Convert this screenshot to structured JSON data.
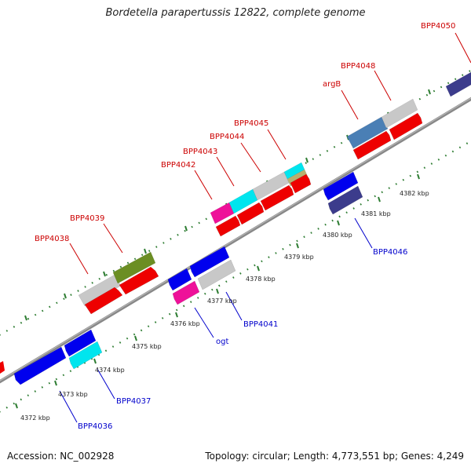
{
  "title": "Bordetella parapertussis 12822, complete genome",
  "footer": {
    "accession": "Accession: NC_002928",
    "summary": "Topology: circular; Length: 4,773,551 bp; Genes: 4,249"
  },
  "colors": {
    "forward_label": "#cc0000",
    "reverse_label": "#0000cc",
    "backbone": "#888888",
    "ticks": "#2e7d32",
    "cds": "#ee0000",
    "gray": "#c8c8c8",
    "olive": "#6b8e23",
    "cyan": "#00e5ee",
    "magenta": "#ee1199",
    "blue": "#0000ee",
    "navy": "#3c3c8c",
    "steelblue": "#4a7fb5",
    "khaki": "#b8b070"
  },
  "kbp_labels": [
    "4372 kbp",
    "4373 kbp",
    "4374 kbp",
    "4375 kbp",
    "4376 kbp",
    "4377 kbp",
    "4378 kbp",
    "4379 kbp",
    "4380 kbp",
    "4381 kbp",
    "4382 kbp"
  ],
  "forward_genes": [
    "BPP4038",
    "BPP4039",
    "BPP4042",
    "BPP4043",
    "BPP4044",
    "BPP4045",
    "argB",
    "BPP4048",
    "BPP4050"
  ],
  "reverse_genes": [
    "BPP4036",
    "BPP4037",
    "ogt",
    "BPP4041",
    "BPP4046"
  ]
}
